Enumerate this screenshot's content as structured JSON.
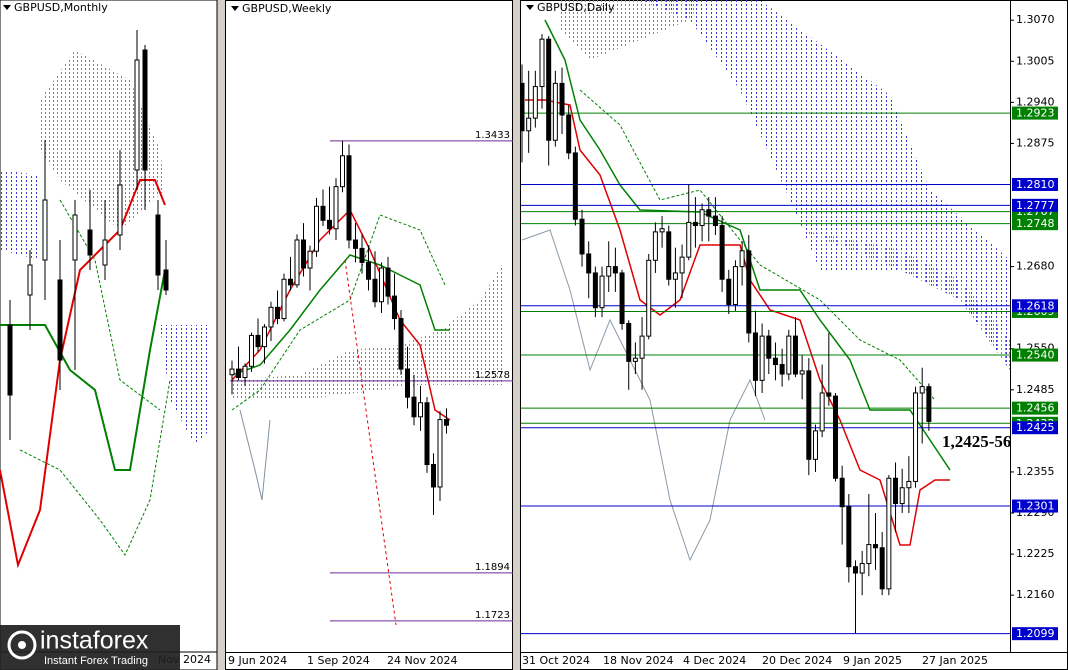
{
  "panels": {
    "monthly": {
      "title": "GBPUSD,Monthly",
      "x_labels": [
        "Nov 2024"
      ]
    },
    "weekly": {
      "title": "GBPUSD,Weekly",
      "x_labels": [
        "9 Jun 2024",
        "1 Sep 2024",
        "24 Nov 2024"
      ],
      "ylim": [
        1.1612,
        1.3935
      ],
      "level_color": "#6a2b9a",
      "levels": [
        {
          "value": 1.3433,
          "label": "1.3433"
        },
        {
          "value": 1.2578,
          "label": "1.2578"
        },
        {
          "value": 1.1894,
          "label": "1.1894"
        },
        {
          "value": 1.1723,
          "label": "1.1723"
        }
      ],
      "candles": [
        [
          1.26,
          1.265,
          1.253,
          1.262
        ],
        [
          1.262,
          1.27,
          1.258,
          1.259
        ],
        [
          1.259,
          1.264,
          1.256,
          1.263
        ],
        [
          1.263,
          1.275,
          1.261,
          1.274
        ],
        [
          1.274,
          1.28,
          1.268,
          1.27
        ],
        [
          1.27,
          1.278,
          1.264,
          1.277
        ],
        [
          1.277,
          1.286,
          1.272,
          1.284
        ],
        [
          1.284,
          1.29,
          1.278,
          1.28
        ],
        [
          1.28,
          1.296,
          1.279,
          1.294
        ],
        [
          1.294,
          1.302,
          1.29,
          1.292
        ],
        [
          1.292,
          1.31,
          1.291,
          1.308
        ],
        [
          1.308,
          1.314,
          1.295,
          1.298
        ],
        [
          1.298,
          1.306,
          1.29,
          1.304
        ],
        [
          1.304,
          1.323,
          1.302,
          1.32
        ],
        [
          1.32,
          1.326,
          1.313,
          1.315
        ],
        [
          1.315,
          1.327,
          1.31,
          1.312
        ],
        [
          1.312,
          1.33,
          1.308,
          1.327
        ],
        [
          1.327,
          1.3433,
          1.325,
          1.338
        ],
        [
          1.338,
          1.342,
          1.305,
          1.308
        ],
        [
          1.308,
          1.314,
          1.3,
          1.305
        ],
        [
          1.305,
          1.31,
          1.296,
          1.3
        ],
        [
          1.3,
          1.306,
          1.29,
          1.294
        ],
        [
          1.294,
          1.304,
          1.284,
          1.286
        ],
        [
          1.286,
          1.3,
          1.282,
          1.298
        ],
        [
          1.298,
          1.302,
          1.285,
          1.288
        ],
        [
          1.288,
          1.296,
          1.276,
          1.28
        ],
        [
          1.28,
          1.283,
          1.26,
          1.262
        ],
        [
          1.262,
          1.27,
          1.248,
          1.252
        ],
        [
          1.252,
          1.26,
          1.242,
          1.245
        ],
        [
          1.245,
          1.256,
          1.24,
          1.25
        ],
        [
          1.25,
          1.252,
          1.225,
          1.228
        ],
        [
          1.228,
          1.232,
          1.21,
          1.22
        ],
        [
          1.22,
          1.247,
          1.215,
          1.244
        ],
        [
          1.244,
          1.248,
          1.239,
          1.242
        ]
      ]
    },
    "daily": {
      "title": "GBPUSD,Daily",
      "x_labels": [
        "31 Oct 2024",
        "18 Nov 2024",
        "4 Dec 2024",
        "20 Dec 2024",
        "9 Jan 2025",
        "27 Jan 2025"
      ],
      "ylim": [
        1.207,
        1.3102
      ],
      "yticks": [
        {
          "value": 1.307,
          "label": "1.3070"
        },
        1.3005,
        {
          "value": 1.294,
          "label": "1.2940"
        },
        1.2875,
        {
          "value": 1.268,
          "label": "1.2680"
        },
        {
          "value": 1.255,
          "label": "1.2550"
        },
        1.2485,
        1.2355,
        {
          "value": 1.229,
          "label": "1.2290"
        },
        1.2225,
        {
          "value": 1.216,
          "label": "1.2160"
        }
      ],
      "levels": [
        {
          "value": 1.2923,
          "label": "1.2923",
          "color": "#008000"
        },
        {
          "value": 1.281,
          "label": "1.2810",
          "color": "#0000cd"
        },
        {
          "value": 1.2767,
          "label": "1.2767",
          "color": "#008000"
        },
        {
          "value": 1.2777,
          "label": "1.2777",
          "color": "#0000cd"
        },
        {
          "value": 1.2748,
          "label": "1.2748",
          "color": "#008000"
        },
        {
          "value": 1.2609,
          "label": "1.2609",
          "color": "#008000"
        },
        {
          "value": 1.2618,
          "label": "1.2618",
          "color": "#0000cd"
        },
        {
          "value": 1.254,
          "label": "1.2540",
          "color": "#008000"
        },
        {
          "value": 1.2456,
          "label": "1.2456",
          "color": "#008000"
        },
        {
          "value": 1.2432,
          "label": "1.2432",
          "color": "#008000"
        },
        {
          "value": 1.2425,
          "label": "1.2425",
          "color": "#0000cd"
        },
        {
          "value": 1.2301,
          "label": "1.2301",
          "color": "#0000cd"
        },
        {
          "value": 1.2099,
          "label": "1.2099",
          "color": "#0000cd"
        }
      ],
      "annotation": "1,2425-56",
      "candles": [
        [
          1.297,
          1.3,
          1.2845,
          1.2895
        ],
        [
          1.2895,
          1.299,
          1.286,
          1.2915
        ],
        [
          1.2915,
          1.299,
          1.29,
          1.2965
        ],
        [
          1.2965,
          1.3048,
          1.293,
          1.304
        ],
        [
          1.304,
          1.3045,
          1.284,
          1.288
        ],
        [
          1.288,
          1.299,
          1.287,
          1.297
        ],
        [
          1.297,
          1.2995,
          1.289,
          1.292
        ],
        [
          1.292,
          1.2935,
          1.285,
          1.286
        ],
        [
          1.286,
          1.287,
          1.2745,
          1.2755
        ],
        [
          1.2755,
          1.277,
          1.268,
          1.27
        ],
        [
          1.27,
          1.272,
          1.263,
          1.267
        ],
        [
          1.267,
          1.268,
          1.26,
          1.2615
        ],
        [
          1.2615,
          1.268,
          1.26,
          1.2665
        ],
        [
          1.2665,
          1.272,
          1.264,
          1.268
        ],
        [
          1.268,
          1.271,
          1.264,
          1.267
        ],
        [
          1.267,
          1.2675,
          1.258,
          1.259
        ],
        [
          1.259,
          1.2595,
          1.2485,
          1.253
        ],
        [
          1.253,
          1.256,
          1.251,
          1.2535
        ],
        [
          1.2535,
          1.26,
          1.2485,
          1.257
        ],
        [
          1.257,
          1.27,
          1.2565,
          1.269
        ],
        [
          1.269,
          1.275,
          1.267,
          1.2735
        ],
        [
          1.2735,
          1.276,
          1.271,
          1.274
        ],
        [
          1.2735,
          1.2745,
          1.265,
          1.266
        ],
        [
          1.266,
          1.271,
          1.2615,
          1.267
        ],
        [
          1.267,
          1.2715,
          1.263,
          1.2695
        ],
        [
          1.2695,
          1.281,
          1.269,
          1.275
        ],
        [
          1.275,
          1.279,
          1.271,
          1.2745
        ],
        [
          1.2745,
          1.278,
          1.272,
          1.277
        ],
        [
          1.277,
          1.279,
          1.272,
          1.276
        ],
        [
          1.276,
          1.279,
          1.273,
          1.2745
        ],
        [
          1.2745,
          1.276,
          1.264,
          1.266
        ],
        [
          1.266,
          1.2675,
          1.2605,
          1.262
        ],
        [
          1.262,
          1.269,
          1.261,
          1.268
        ],
        [
          1.268,
          1.272,
          1.265,
          1.2705
        ],
        [
          1.2705,
          1.273,
          1.256,
          1.2575
        ],
        [
          1.2575,
          1.261,
          1.2475,
          1.25
        ],
        [
          1.25,
          1.259,
          1.248,
          1.257
        ],
        [
          1.257,
          1.258,
          1.251,
          1.2535
        ],
        [
          1.2535,
          1.256,
          1.25,
          1.2525
        ],
        [
          1.2525,
          1.255,
          1.249,
          1.251
        ],
        [
          1.251,
          1.258,
          1.25,
          1.257
        ],
        [
          1.257,
          1.26,
          1.2505,
          1.251
        ],
        [
          1.251,
          1.254,
          1.247,
          1.2515
        ],
        [
          1.2515,
          1.2535,
          1.235,
          1.2375
        ],
        [
          1.2375,
          1.243,
          1.2355,
          1.242
        ],
        [
          1.242,
          1.2525,
          1.241,
          1.248
        ],
        [
          1.248,
          1.2575,
          1.246,
          1.2475
        ],
        [
          1.2475,
          1.248,
          1.234,
          1.2345
        ],
        [
          1.2345,
          1.2365,
          1.224,
          1.23
        ],
        [
          1.23,
          1.232,
          1.218,
          1.2205
        ],
        [
          1.2205,
          1.2215,
          1.21,
          1.2195
        ],
        [
          1.2195,
          1.223,
          1.216,
          1.221
        ],
        [
          1.221,
          1.232,
          1.219,
          1.224
        ],
        [
          1.224,
          1.229,
          1.22,
          1.2235
        ],
        [
          1.2235,
          1.226,
          1.216,
          1.217
        ],
        [
          1.217,
          1.235,
          1.216,
          1.2345
        ],
        [
          1.2345,
          1.237,
          1.226,
          1.2305
        ],
        [
          1.2305,
          1.236,
          1.229,
          1.233
        ],
        [
          1.233,
          1.238,
          1.229,
          1.234
        ],
        [
          1.234,
          1.249,
          1.233,
          1.248
        ],
        [
          1.248,
          1.252,
          1.24,
          1.249
        ],
        [
          1.249,
          1.2495,
          1.242,
          1.2435
        ]
      ]
    }
  },
  "logo": {
    "name": "instaforex",
    "tagline": "Instant Forex Trading"
  }
}
